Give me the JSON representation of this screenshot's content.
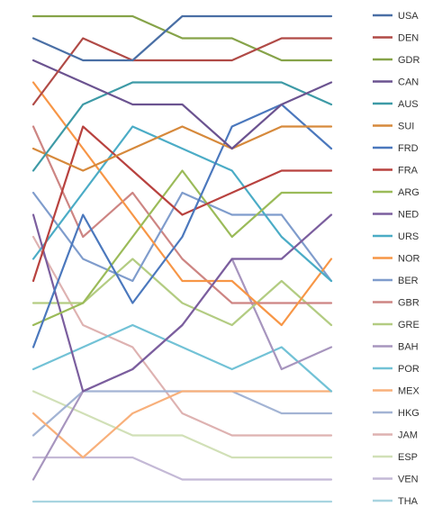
{
  "chart_data": {
    "type": "line",
    "title": "",
    "xlabel": "",
    "ylabel": "",
    "x": [
      1,
      2,
      3,
      4,
      5,
      6,
      7
    ],
    "ylim": [
      1,
      23
    ],
    "y_inverted": true,
    "grid": false,
    "legend_position": "right",
    "series": [
      {
        "name": "USA",
        "color": "#4a6fa5",
        "values": [
          2,
          3,
          3,
          1,
          1,
          1,
          1
        ]
      },
      {
        "name": "DEN",
        "color": "#b04a46",
        "values": [
          5,
          2,
          3,
          3,
          3,
          2,
          2
        ]
      },
      {
        "name": "GDR",
        "color": "#86a349",
        "values": [
          1,
          1,
          1,
          2,
          2,
          3,
          3
        ]
      },
      {
        "name": "CAN",
        "color": "#6b5390",
        "values": [
          3,
          4,
          5,
          5,
          7,
          5,
          4
        ]
      },
      {
        "name": "AUS",
        "color": "#3d9aa6",
        "values": [
          8,
          5,
          4,
          4,
          4,
          4,
          5
        ]
      },
      {
        "name": "SUI",
        "color": "#d6893b",
        "values": [
          7,
          8,
          7,
          6,
          7,
          6,
          6
        ]
      },
      {
        "name": "FRD",
        "color": "#4b78bd",
        "values": [
          16,
          10,
          14,
          11,
          6,
          5,
          7
        ]
      },
      {
        "name": "FRA",
        "color": "#b8423f",
        "values": [
          13,
          6,
          8,
          10,
          9,
          8,
          8
        ]
      },
      {
        "name": "ARG",
        "color": "#9bbb59",
        "values": [
          15,
          14,
          11,
          8,
          11,
          9,
          9
        ]
      },
      {
        "name": "NED",
        "color": "#7b5e9e",
        "values": [
          10,
          18,
          17,
          15,
          12,
          12,
          10
        ]
      },
      {
        "name": "URS",
        "color": "#4bacc6",
        "values": [
          12,
          9,
          6,
          7,
          8,
          11,
          13
        ]
      },
      {
        "name": "NOR",
        "color": "#f79646",
        "values": [
          4,
          7,
          10,
          13,
          13,
          15,
          12
        ]
      },
      {
        "name": "BER",
        "color": "#7f9ccc",
        "values": [
          9,
          12,
          13,
          9,
          10,
          10,
          13
        ]
      },
      {
        "name": "GBR",
        "color": "#cd8583",
        "values": [
          6,
          11,
          9,
          12,
          14,
          14,
          14
        ]
      },
      {
        "name": "GRE",
        "color": "#b3cc82",
        "values": [
          14,
          14,
          12,
          14,
          15,
          13,
          15
        ]
      },
      {
        "name": "BAH",
        "color": "#a795be",
        "values": [
          22,
          18,
          17,
          15,
          12,
          17,
          16
        ]
      },
      {
        "name": "POR",
        "color": "#72c2d6",
        "values": [
          17,
          16,
          15,
          16,
          17,
          16,
          18
        ]
      },
      {
        "name": "MEX",
        "color": "#f8b07b",
        "values": [
          19,
          21,
          19,
          18,
          18,
          18,
          18
        ]
      },
      {
        "name": "HKG",
        "color": "#a3b4d4",
        "values": [
          20,
          18,
          18,
          18,
          18,
          19,
          19
        ]
      },
      {
        "name": "JAM",
        "color": "#deb2b1",
        "values": [
          11,
          15,
          16,
          19,
          20,
          20,
          20
        ]
      },
      {
        "name": "ESP",
        "color": "#d1e0b7",
        "values": [
          18,
          19,
          20,
          20,
          21,
          21,
          21
        ]
      },
      {
        "name": "VEN",
        "color": "#c4b9d6",
        "values": [
          21,
          21,
          21,
          22,
          22,
          22,
          22
        ]
      },
      {
        "name": "THA",
        "color": "#a8d4e0",
        "values": [
          23,
          23,
          23,
          23,
          23,
          23,
          23
        ]
      }
    ]
  }
}
